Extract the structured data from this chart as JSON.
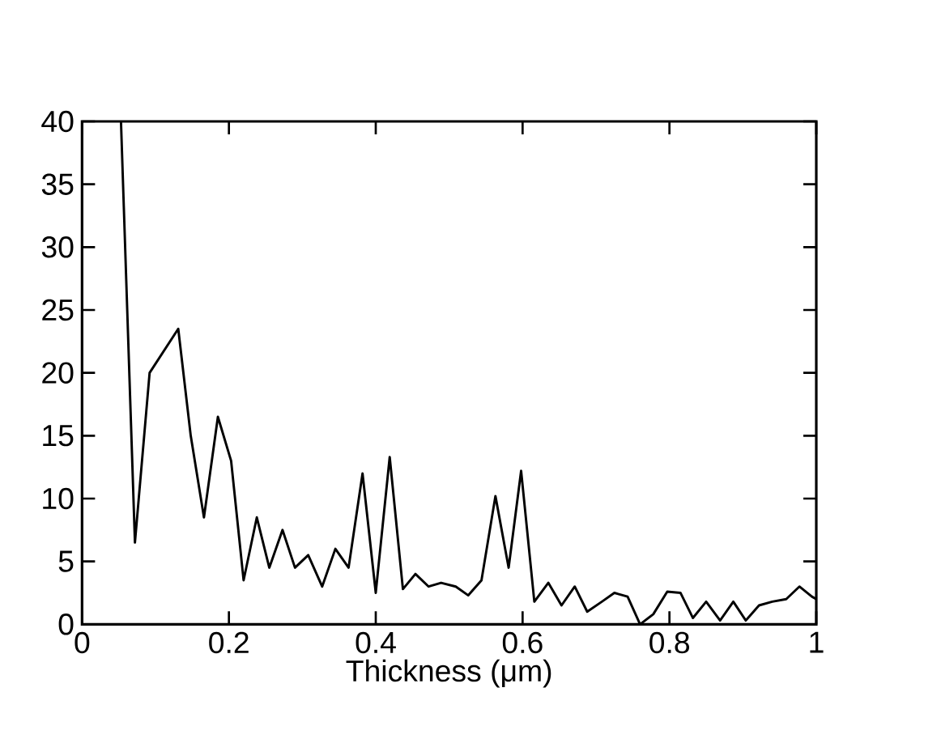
{
  "chart_data": {
    "type": "line",
    "xlabel": "Thickness   (μm)",
    "x": [
      0.053,
      0.072,
      0.092,
      0.131,
      0.148,
      0.166,
      0.185,
      0.203,
      0.22,
      0.238,
      0.255,
      0.273,
      0.29,
      0.308,
      0.327,
      0.345,
      0.363,
      0.382,
      0.4,
      0.419,
      0.437,
      0.454,
      0.472,
      0.489,
      0.509,
      0.526,
      0.544,
      0.563,
      0.581,
      0.598,
      0.616,
      0.635,
      0.653,
      0.671,
      0.688,
      0.708,
      0.725,
      0.743,
      0.76,
      0.778,
      0.797,
      0.815,
      0.832,
      0.85,
      0.869,
      0.887,
      0.904,
      0.922,
      0.94,
      0.959,
      0.977,
      0.994,
      1.0
    ],
    "series": [
      {
        "color": "#000000",
        "values": [
          40,
          6.5,
          20,
          23.5,
          15,
          8.5,
          16.5,
          13,
          3.5,
          8.5,
          4.5,
          7.5,
          4.5,
          5.5,
          3,
          6,
          4.5,
          12,
          2.5,
          13.3,
          2.8,
          4,
          3,
          3.3,
          3,
          2.3,
          3.5,
          10.2,
          4.5,
          12.2,
          1.8,
          3.3,
          1.5,
          3,
          1,
          1.8,
          2.5,
          2.2,
          0,
          0.8,
          2.6,
          2.5,
          0.5,
          1.8,
          0.3,
          1.8,
          0.3,
          1.5,
          1.8,
          2,
          3,
          2.2,
          2
        ]
      }
    ],
    "xlim": [
      0,
      1
    ],
    "ylim": [
      0,
      40
    ],
    "xticks": [
      0,
      {
        "value": 0.2,
        "label": "0.2"
      },
      {
        "value": 0.4,
        "label": "0.4"
      },
      {
        "value": 0.6,
        "label": "0.6"
      },
      {
        "value": 0.8,
        "label": "0.8"
      },
      1
    ],
    "yticks": [
      0,
      5,
      10,
      15,
      20,
      25,
      30,
      35,
      40
    ],
    "grid": false,
    "marker": "none",
    "line_style": "solid"
  }
}
